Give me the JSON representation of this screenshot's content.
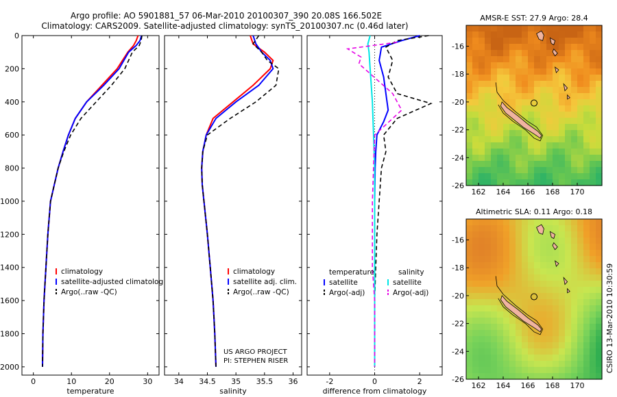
{
  "header": {
    "line1": "Argo profile: AO 5901881_57 06-Mar-2010 20100307_390 20.08S 166.502E",
    "line2": "Climatology: CARS2009. Satellite-adjusted climatology: synTS_20100307.nc (0.46d later)"
  },
  "credit": "US ARGO PROJECT",
  "pi": "PI: STEPHEN RISER",
  "stamp": "CSIRO 13-Mar-2010 10:30:59",
  "colors": {
    "climatology": "#ff0000",
    "satellite": "#0000ff",
    "argo": "#000000",
    "sat_salinity": "#00e5e5",
    "argo_salinity": "#e600e6"
  },
  "chart_data": [
    {
      "type": "line",
      "xlabel": "temperature",
      "xlim": [
        -3,
        33
      ],
      "ylim": [
        2050,
        0
      ],
      "xticks": [
        0,
        10,
        20,
        30
      ],
      "yticks": [
        0,
        200,
        400,
        600,
        800,
        1000,
        1200,
        1400,
        1600,
        1800,
        2000
      ],
      "legend": [
        "climatology",
        "satellite-adjusted climatolog",
        "Argo(..raw -QC)"
      ],
      "series": [
        {
          "name": "climatology",
          "color": "red",
          "dash": false,
          "x": [
            27.5,
            27.0,
            26.3,
            24.8,
            22.0,
            18.0,
            14.0,
            11.0,
            9.2,
            7.8,
            6.5,
            5.5,
            4.5,
            3.8,
            3.3,
            2.8,
            2.5,
            2.4
          ],
          "y": [
            0,
            30,
            60,
            100,
            200,
            300,
            400,
            500,
            600,
            700,
            800,
            900,
            1000,
            1200,
            1400,
            1600,
            1800,
            2000
          ]
        },
        {
          "name": "satellite-adjusted climatolog",
          "color": "blue",
          "dash": false,
          "x": [
            28.4,
            28.0,
            27.0,
            25.0,
            22.5,
            18.5,
            14.0,
            11.0,
            9.2,
            7.8,
            6.5,
            5.5,
            4.5,
            3.8,
            3.3,
            2.8,
            2.5,
            2.4
          ],
          "y": [
            0,
            30,
            60,
            100,
            200,
            300,
            400,
            500,
            600,
            700,
            800,
            900,
            1000,
            1200,
            1400,
            1600,
            1800,
            2000
          ]
        },
        {
          "name": "Argo(..raw -QC)",
          "color": "black",
          "dash": true,
          "x": [
            28.5,
            28.3,
            27.8,
            26.0,
            24.0,
            20.5,
            16.5,
            12.5,
            9.8,
            8.0,
            6.5,
            5.5,
            4.5,
            3.8,
            3.3,
            2.8,
            2.5,
            2.4
          ],
          "y": [
            0,
            30,
            60,
            100,
            200,
            300,
            400,
            500,
            600,
            700,
            800,
            900,
            1000,
            1200,
            1400,
            1600,
            1800,
            2000
          ]
        }
      ]
    },
    {
      "type": "line",
      "xlabel": "salinity",
      "xlim": [
        33.75,
        36.15
      ],
      "ylim": [
        2050,
        0
      ],
      "xticks": [
        34,
        34.5,
        35,
        35.5,
        36
      ],
      "yticks": [
        0,
        200,
        400,
        600,
        800,
        1000,
        1200,
        1400,
        1600,
        1800,
        2000
      ],
      "legend": [
        "climatology",
        "satellite adj. clim.",
        "Argo(..raw -QC)"
      ],
      "series": [
        {
          "name": "climatology",
          "color": "red",
          "dash": false,
          "x": [
            35.25,
            35.3,
            35.5,
            35.65,
            35.6,
            35.3,
            34.95,
            34.6,
            34.48,
            34.42,
            34.4,
            34.41,
            34.44,
            34.5,
            34.55,
            34.6,
            34.63,
            34.65
          ],
          "y": [
            0,
            50,
            100,
            150,
            200,
            300,
            400,
            500,
            600,
            700,
            800,
            900,
            1000,
            1200,
            1400,
            1600,
            1800,
            2000
          ]
        },
        {
          "name": "satellite adj. clim.",
          "color": "blue",
          "dash": false,
          "x": [
            35.3,
            35.35,
            35.45,
            35.6,
            35.65,
            35.4,
            35.0,
            34.65,
            34.48,
            34.42,
            34.4,
            34.41,
            34.44,
            34.5,
            34.55,
            34.6,
            34.63,
            34.65
          ],
          "y": [
            0,
            50,
            100,
            150,
            200,
            300,
            400,
            500,
            600,
            700,
            800,
            900,
            1000,
            1200,
            1400,
            1600,
            1800,
            2000
          ]
        },
        {
          "name": "Argo(..raw -QC)",
          "color": "black",
          "dash": true,
          "x": [
            35.4,
            35.3,
            35.45,
            35.55,
            35.75,
            35.7,
            35.35,
            34.9,
            34.5,
            34.42,
            34.4,
            34.41,
            34.44,
            34.5,
            34.55,
            34.6,
            34.63,
            34.65
          ],
          "y": [
            0,
            50,
            100,
            150,
            200,
            300,
            400,
            500,
            600,
            700,
            800,
            900,
            1000,
            1200,
            1400,
            1600,
            1800,
            2000
          ]
        }
      ]
    },
    {
      "type": "line",
      "xlabel": "difference from climatology",
      "xlim": [
        -3,
        3
      ],
      "ylim": [
        2050,
        0
      ],
      "xticks": [
        -2,
        0,
        2
      ],
      "yticks": [
        0,
        200,
        400,
        600,
        800,
        1000,
        1200,
        1400,
        1600,
        1800,
        2000
      ],
      "legend_left_title": "temperature",
      "legend_right_title": "salinity",
      "legend": [
        "satellite",
        "Argo(-adj)",
        "satellite",
        "Argo(-adj)"
      ],
      "series": [
        {
          "name": "satellite",
          "color": "blue",
          "dash": false,
          "x": [
            2.0,
            1.2,
            0.3,
            0.2,
            0.4,
            0.5,
            0.6,
            0.4,
            0.1,
            0.05,
            0.02,
            0.0,
            0.0,
            0.0,
            0.0,
            0.0,
            0.0
          ],
          "y": [
            0,
            30,
            70,
            150,
            250,
            350,
            450,
            520,
            600,
            700,
            800,
            1000,
            1200,
            1400,
            1600,
            1800,
            2000
          ]
        },
        {
          "name": "Argo(-adj)",
          "color": "black",
          "dash": true,
          "x": [
            2.4,
            1.0,
            0.5,
            0.8,
            0.6,
            1.0,
            2.5,
            1.0,
            0.4,
            0.5,
            0.3,
            0.2,
            0.1,
            0.05,
            0.0,
            0.0,
            0.0
          ],
          "y": [
            0,
            30,
            70,
            150,
            250,
            350,
            410,
            500,
            600,
            700,
            800,
            1000,
            1200,
            1400,
            1600,
            1800,
            2000
          ]
        },
        {
          "name": "satellite",
          "color": "cyan",
          "dash": false,
          "x": [
            -0.2,
            -0.3,
            -0.25,
            -0.2,
            -0.1,
            -0.05,
            0.0,
            0.0,
            0.0,
            0.0,
            0.0,
            0.0
          ],
          "y": [
            0,
            50,
            100,
            200,
            400,
            600,
            800,
            1000,
            1400,
            1600,
            1800,
            2000
          ]
        },
        {
          "name": "Argo(-adj)",
          "color": "magenta",
          "dash": true,
          "x": [
            1.0,
            -1.2,
            -0.6,
            -0.7,
            0.8,
            1.2,
            0.0,
            -0.1,
            -0.1,
            0.0,
            0.0,
            0.0
          ],
          "y": [
            40,
            80,
            130,
            170,
            350,
            450,
            600,
            1000,
            1400,
            1600,
            1800,
            2000
          ]
        }
      ]
    },
    {
      "type": "heatmap",
      "title": "AMSR-E SST: 27.9 Argo: 28.4",
      "xlim": [
        161,
        172
      ],
      "ylim": [
        -26,
        -14.5
      ],
      "xticks": [
        162,
        164,
        166,
        168,
        170
      ],
      "yticks": [
        -16,
        -18,
        -20,
        -22,
        -24,
        -26
      ],
      "colors": [
        "#c86414",
        "#f08c1e",
        "#f5c83c",
        "#c8dc3c",
        "#6cc850",
        "#32b464"
      ],
      "argo_position": [
        166.5,
        -20.08
      ]
    },
    {
      "type": "heatmap",
      "title": "Altimetric SLA: 0.11 Argo: 0.18",
      "xlim": [
        161,
        172
      ],
      "ylim": [
        -26,
        -14.5
      ],
      "xticks": [
        162,
        164,
        166,
        168,
        170
      ],
      "yticks": [
        -16,
        -18,
        -20,
        -22,
        -24,
        -26
      ],
      "colors": [
        "#28aa50",
        "#78d25a",
        "#c8e650",
        "#f0a028",
        "#dc7828"
      ],
      "argo_position": [
        166.5,
        -20.08
      ]
    }
  ]
}
